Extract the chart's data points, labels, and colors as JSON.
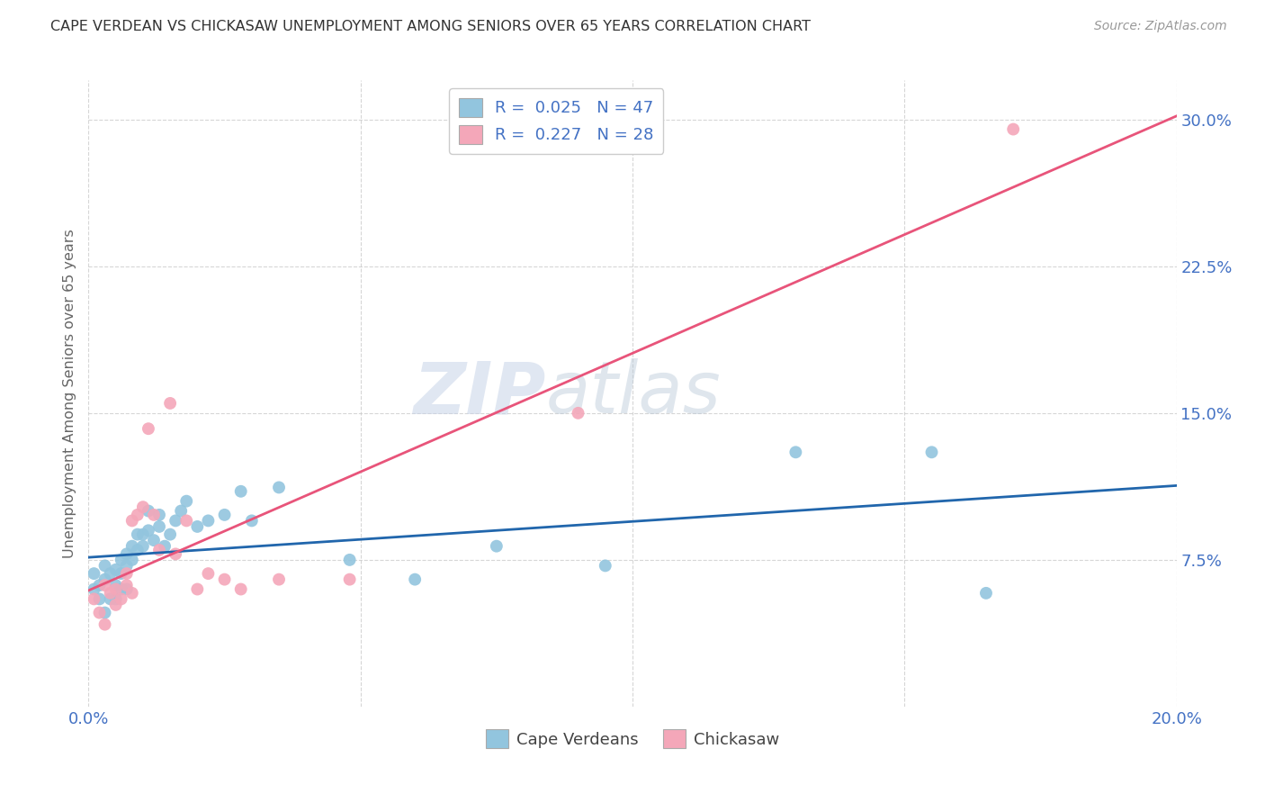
{
  "title": "CAPE VERDEAN VS CHICKASAW UNEMPLOYMENT AMONG SENIORS OVER 65 YEARS CORRELATION CHART",
  "source": "Source: ZipAtlas.com",
  "ylabel": "Unemployment Among Seniors over 65 years",
  "xlim": [
    0.0,
    0.2
  ],
  "ylim": [
    0.0,
    0.32
  ],
  "blue_color": "#92C5DE",
  "pink_color": "#F4A7B9",
  "blue_line_color": "#2166AC",
  "pink_line_color": "#E8547A",
  "tick_color": "#4472C4",
  "grid_color": "#cccccc",
  "axis_label_color": "#666666",
  "cape_verdean_x": [
    0.001,
    0.001,
    0.002,
    0.002,
    0.003,
    0.003,
    0.003,
    0.004,
    0.004,
    0.005,
    0.005,
    0.005,
    0.006,
    0.006,
    0.006,
    0.007,
    0.007,
    0.007,
    0.008,
    0.008,
    0.009,
    0.009,
    0.01,
    0.01,
    0.011,
    0.011,
    0.012,
    0.013,
    0.013,
    0.014,
    0.015,
    0.016,
    0.017,
    0.018,
    0.02,
    0.022,
    0.025,
    0.028,
    0.03,
    0.035,
    0.048,
    0.06,
    0.075,
    0.095,
    0.13,
    0.155,
    0.165
  ],
  "cape_verdean_y": [
    0.068,
    0.06,
    0.055,
    0.062,
    0.048,
    0.065,
    0.072,
    0.055,
    0.068,
    0.055,
    0.062,
    0.07,
    0.06,
    0.068,
    0.075,
    0.06,
    0.072,
    0.078,
    0.075,
    0.082,
    0.08,
    0.088,
    0.082,
    0.088,
    0.09,
    0.1,
    0.085,
    0.092,
    0.098,
    0.082,
    0.088,
    0.095,
    0.1,
    0.105,
    0.092,
    0.095,
    0.098,
    0.11,
    0.095,
    0.112,
    0.075,
    0.065,
    0.082,
    0.072,
    0.13,
    0.13,
    0.058
  ],
  "chickasaw_x": [
    0.001,
    0.002,
    0.003,
    0.003,
    0.004,
    0.005,
    0.005,
    0.006,
    0.007,
    0.007,
    0.008,
    0.008,
    0.009,
    0.01,
    0.011,
    0.012,
    0.013,
    0.015,
    0.016,
    0.018,
    0.02,
    0.022,
    0.025,
    0.028,
    0.035,
    0.048,
    0.09,
    0.17
  ],
  "chickasaw_y": [
    0.055,
    0.048,
    0.042,
    0.062,
    0.058,
    0.052,
    0.06,
    0.055,
    0.062,
    0.068,
    0.058,
    0.095,
    0.098,
    0.102,
    0.142,
    0.098,
    0.08,
    0.155,
    0.078,
    0.095,
    0.06,
    0.068,
    0.065,
    0.06,
    0.065,
    0.065,
    0.15,
    0.295
  ],
  "legend_labels": [
    "Cape Verdeans",
    "Chickasaw"
  ]
}
